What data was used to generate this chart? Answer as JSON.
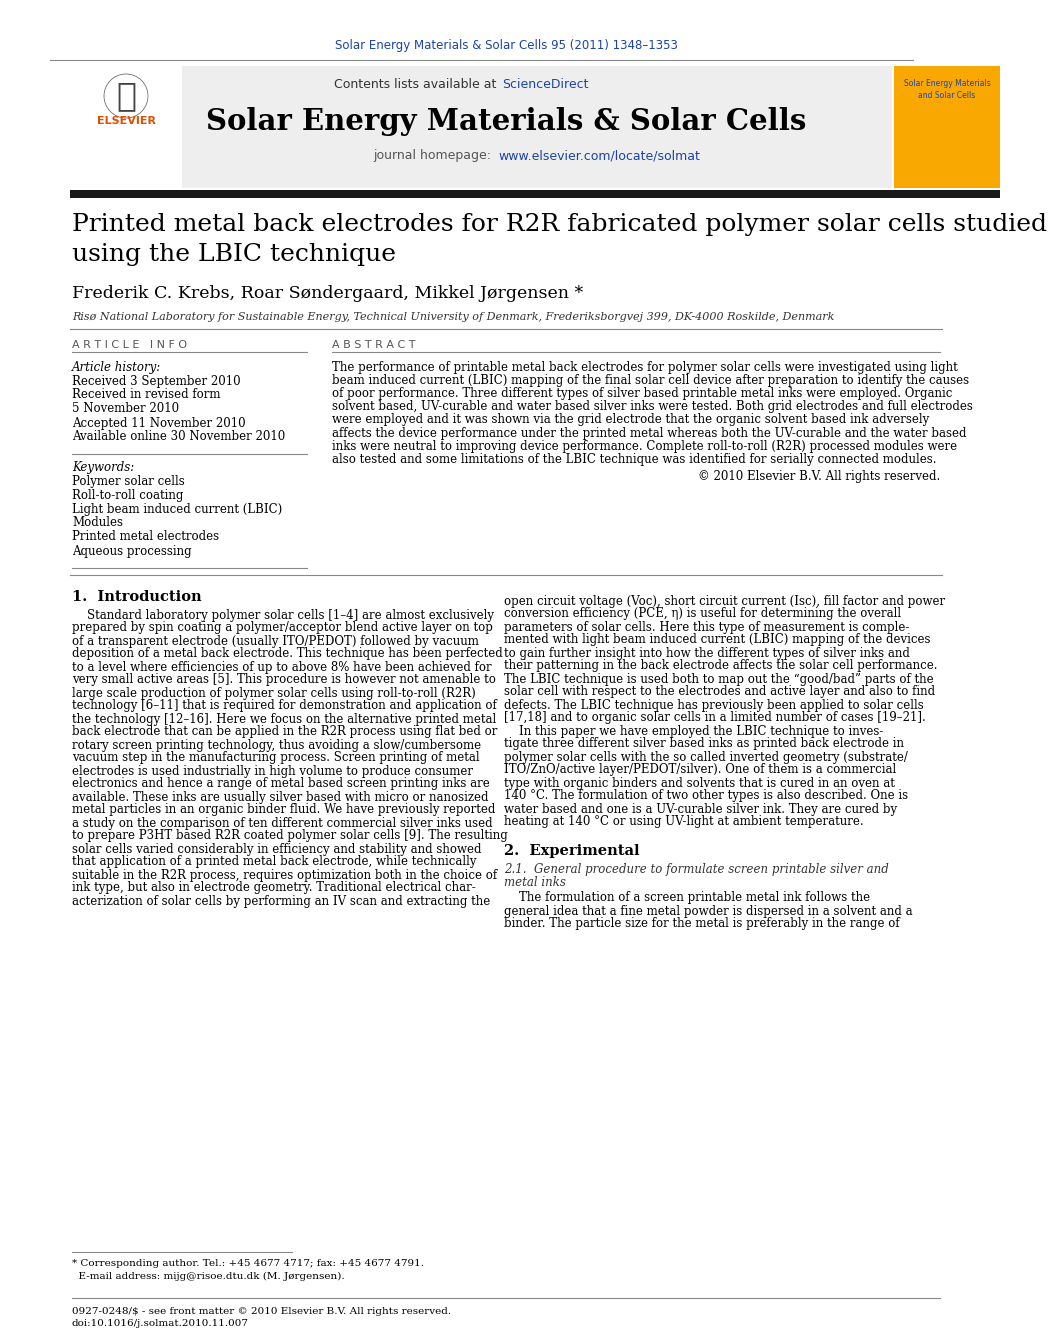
{
  "journal_ref": "Solar Energy Materials & Solar Cells 95 (2011) 1348–1353",
  "journal_name": "Solar Energy Materials & Solar Cells",
  "contents_text": "Contents lists available at ",
  "science_direct": "ScienceDirect",
  "journal_homepage_text": "journal homepage: ",
  "journal_url": "www.elsevier.com/locate/solmat",
  "paper_title_line1": "Printed metal back electrodes for R2R fabricated polymer solar cells studied",
  "paper_title_line2": "using the LBIC technique",
  "authors": "Frederik C. Krebs, Roar Søndergaard, Mikkel Jørgensen *",
  "affiliation": "Risø National Laboratory for Sustainable Energy, Technical University of Denmark, Frederiksborgvej 399, DK-4000 Roskilde, Denmark",
  "article_info_header": "ARTICLE INFO",
  "abstract_header": "ABSTRACT",
  "article_history_label": "Article history:",
  "received_1": "Received 3 September 2010",
  "received_revised": "Received in revised form",
  "received_revised_date": "5 November 2010",
  "accepted": "Accepted 11 November 2010",
  "available_online": "Available online 30 November 2010",
  "keywords_label": "Keywords:",
  "keywords": [
    "Polymer solar cells",
    "Roll-to-roll coating",
    "Light beam induced current (LBIC)",
    "Modules",
    "Printed metal electrodes",
    "Aqueous processing"
  ],
  "abstract_lines": [
    "The performance of printable metal back electrodes for polymer solar cells were investigated using light",
    "beam induced current (LBIC) mapping of the final solar cell device after preparation to identify the causes",
    "of poor performance. Three different types of silver based printable metal inks were employed. Organic",
    "solvent based, UV-curable and water based silver inks were tested. Both grid electrodes and full electrodes",
    "were employed and it was shown via the grid electrode that the organic solvent based ink adversely",
    "affects the device performance under the printed metal whereas both the UV-curable and the water based",
    "inks were neutral to improving device performance. Complete roll-to-roll (R2R) processed modules were",
    "also tested and some limitations of the LBIC technique was identified for serially connected modules."
  ],
  "copyright": "© 2010 Elsevier B.V. All rights reserved.",
  "intro_header": "1.  Introduction",
  "intro_col1_lines": [
    "    Standard laboratory polymer solar cells [1–4] are almost exclusively",
    "prepared by spin coating a polymer/acceptor blend active layer on top",
    "of a transparent electrode (usually ITO/PEDOT) followed by vacuum",
    "deposition of a metal back electrode. This technique has been perfected",
    "to a level where efficiencies of up to above 8% have been achieved for",
    "very small active areas [5]. This procedure is however not amenable to",
    "large scale production of polymer solar cells using roll-to-roll (R2R)",
    "technology [6–11] that is required for demonstration and application of",
    "the technology [12–16]. Here we focus on the alternative printed metal",
    "back electrode that can be applied in the R2R process using flat bed or",
    "rotary screen printing technology, thus avoiding a slow/cumbersome",
    "vacuum step in the manufacturing process. Screen printing of metal",
    "electrodes is used industrially in high volume to produce consumer",
    "electronics and hence a range of metal based screen printing inks are",
    "available. These inks are usually silver based with micro or nanosized",
    "metal particles in an organic binder fluid. We have previously reported",
    "a study on the comparison of ten different commercial silver inks used",
    "to prepare P3HT based R2R coated polymer solar cells [9]. The resulting",
    "solar cells varied considerably in efficiency and stability and showed",
    "that application of a printed metal back electrode, while technically",
    "suitable in the R2R process, requires optimization both in the choice of",
    "ink type, but also in electrode geometry. Traditional electrical char-",
    "acterization of solar cells by performing an IV scan and extracting the"
  ],
  "intro_col2_lines": [
    "open circuit voltage (Voc), short circuit current (Isc), fill factor and power",
    "conversion efficiency (PCE, η) is useful for determining the overall",
    "parameters of solar cells. Here this type of measurement is comple-",
    "mented with light beam induced current (LBIC) mapping of the devices",
    "to gain further insight into how the different types of silver inks and",
    "their patterning in the back electrode affects the solar cell performance.",
    "The LBIC technique is used both to map out the “good/bad” parts of the",
    "solar cell with respect to the electrodes and active layer and also to find",
    "defects. The LBIC technique has previously been applied to solar cells",
    "[17,18] and to organic solar cells in a limited number of cases [19–21].",
    "    In this paper we have employed the LBIC technique to inves-",
    "tigate three different silver based inks as printed back electrode in",
    "polymer solar cells with the so called inverted geometry (substrate/",
    "ITO/ZnO/active layer/PEDOT/silver). One of them is a commercial",
    "type with organic binders and solvents that is cured in an oven at",
    "140 °C. The formulation of two other types is also described. One is",
    "water based and one is a UV-curable silver ink. They are cured by",
    "heating at 140 °C or using UV-light at ambient temperature."
  ],
  "section2_header": "2.  Experimental",
  "section21_header_line1": "2.1.  General procedure to formulate screen printable silver and",
  "section21_header_line2": "metal inks",
  "section21_lines": [
    "    The formulation of a screen printable metal ink follows the",
    "general idea that a fine metal powder is dispersed in a solvent and a",
    "binder. The particle size for the metal is preferably in the range of"
  ],
  "footnote_line1": "* Corresponding author. Tel.: +45 4677 4717; fax: +45 4677 4791.",
  "footnote_line2": "  E-mail address: mijg@risoe.dtu.dk (M. Jørgensen).",
  "footer_line1": "0927-0248/$ - see front matter © 2010 Elsevier B.V. All rights reserved.",
  "footer_line2": "doi:10.1016/j.solmat.2010.11.007",
  "bg_color": "#ffffff",
  "header_bg": "#eeeeee",
  "thick_bar_color": "#1a1a1a",
  "journal_ref_color": "#1a44a8",
  "sciencedirect_color": "#1a44a8",
  "url_color": "#1a44a8",
  "text_color": "#000000",
  "gray_text": "#555555"
}
